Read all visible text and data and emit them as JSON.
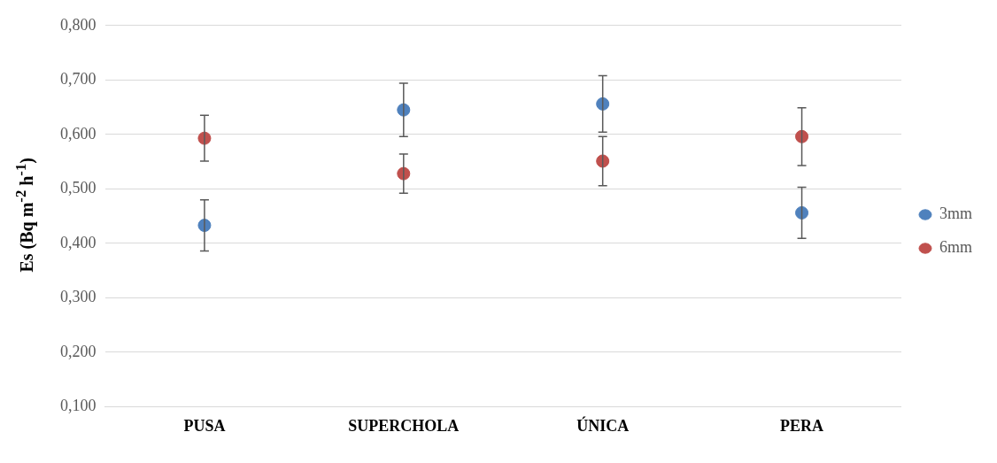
{
  "chart_data": {
    "type": "scatter",
    "ylabel": "Es (Bq m$^{-2}$ h$^{-1}$)",
    "categories": [
      "PUSA",
      "SUPERCHOLA",
      "ÚNICA",
      "PERA"
    ],
    "series": [
      {
        "name": "3mm",
        "color": "#4f81bd",
        "values": [
          0.433,
          0.645,
          0.656,
          0.456
        ],
        "errors": [
          0.047,
          0.049,
          0.052,
          0.047
        ]
      },
      {
        "name": "6mm",
        "color": "#c0504d",
        "values": [
          0.593,
          0.528,
          0.551,
          0.596
        ],
        "errors": [
          0.042,
          0.036,
          0.045,
          0.053
        ]
      }
    ],
    "ylim": [
      0.1,
      0.8
    ],
    "yticks": [
      {
        "value": 0.1,
        "label": "0,100"
      },
      {
        "value": 0.2,
        "label": "0,200"
      },
      {
        "value": 0.3,
        "label": "0,300"
      },
      {
        "value": 0.4,
        "label": "0,400"
      },
      {
        "value": 0.5,
        "label": "0,500"
      },
      {
        "value": 0.6,
        "label": "0,600"
      },
      {
        "value": 0.7,
        "label": "0,700"
      },
      {
        "value": 0.8,
        "label": "0,800"
      }
    ],
    "grid": "y",
    "legend": "right",
    "marker": "circle"
  }
}
